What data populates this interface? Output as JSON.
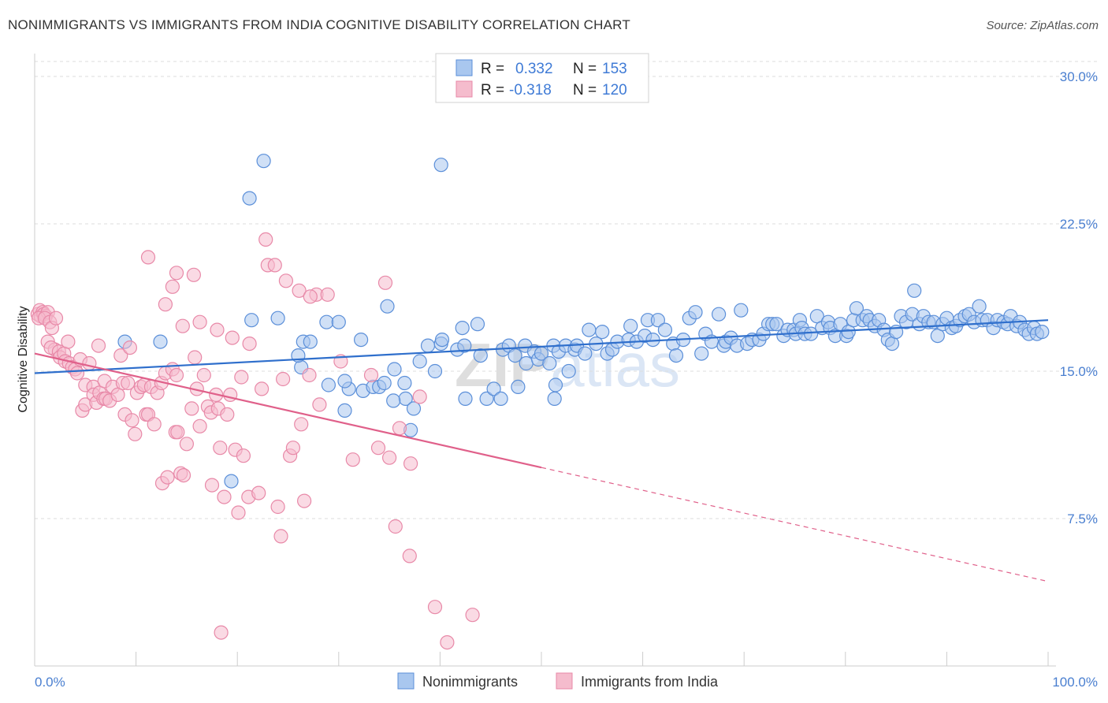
{
  "title": "NONIMMIGRANTS VS IMMIGRANTS FROM INDIA COGNITIVE DISABILITY CORRELATION CHART",
  "source": "Source: ZipAtlas.com",
  "watermark": "ZIPatlas",
  "colors": {
    "blue": "#5b8fd9",
    "blue_fill": "#a9c7ef",
    "blue_line": "#2f6fcc",
    "pink": "#e889a8",
    "pink_fill": "#f5bccd",
    "pink_line": "#e0608a",
    "axis_text": "#4a7fd0",
    "grid": "#d9d9d9"
  },
  "legend_box": [
    {
      "r_label": "R = ",
      "r_value": "0.332",
      "n_label": "N = ",
      "n_value": "153"
    },
    {
      "r_label": "R = ",
      "r_value": "-0.318",
      "n_label": "N = ",
      "n_value": "120"
    }
  ],
  "chart_data": {
    "type": "scatter",
    "title": "NONIMMIGRANTS VS IMMIGRANTS FROM INDIA COGNITIVE DISABILITY CORRELATION CHART",
    "xlabel": "",
    "ylabel": "Cognitive Disability",
    "xlim": [
      0,
      100
    ],
    "ylim": [
      0,
      30
    ],
    "x_tick_labels": [
      "0.0%",
      "100.0%"
    ],
    "y_ticks": [
      7.5,
      15.0,
      22.5,
      30.0
    ],
    "y_tick_labels": [
      "7.5%",
      "15.0%",
      "22.5%",
      "30.0%"
    ],
    "grid": "horizontal dashed",
    "legend_position": "bottom",
    "series": [
      {
        "name": "Nonimmigrants",
        "color": "#5b8fd9",
        "r": 0.332,
        "n": 153,
        "trend": {
          "x": [
            0,
            100
          ],
          "y": [
            14.9,
            17.6
          ],
          "dashed_from": null
        },
        "points": [
          [
            22.6,
            25.7
          ],
          [
            40.1,
            25.5
          ],
          [
            21.2,
            23.8
          ],
          [
            8.9,
            16.5
          ],
          [
            12.4,
            16.5
          ],
          [
            21.4,
            17.6
          ],
          [
            24.0,
            17.7
          ],
          [
            26.3,
            15.2
          ],
          [
            26.0,
            15.8
          ],
          [
            26.5,
            16.5
          ],
          [
            27.2,
            16.5
          ],
          [
            28.8,
            17.5
          ],
          [
            29.0,
            14.3
          ],
          [
            30.0,
            17.5
          ],
          [
            30.6,
            13.0
          ],
          [
            32.2,
            16.6
          ],
          [
            31.0,
            14.1
          ],
          [
            32.4,
            14.0
          ],
          [
            33.4,
            14.2
          ],
          [
            34.0,
            14.2
          ],
          [
            34.5,
            14.4
          ],
          [
            34.8,
            18.3
          ],
          [
            35.5,
            15.1
          ],
          [
            36.5,
            14.4
          ],
          [
            36.6,
            13.6
          ],
          [
            37.4,
            13.1
          ],
          [
            38.0,
            15.5
          ],
          [
            39.5,
            15.0
          ],
          [
            38.8,
            16.3
          ],
          [
            40.1,
            16.4
          ],
          [
            41.7,
            16.1
          ],
          [
            40.2,
            16.6
          ],
          [
            42.2,
            17.2
          ],
          [
            42.4,
            16.3
          ],
          [
            43.7,
            17.4
          ],
          [
            44.0,
            15.8
          ],
          [
            44.6,
            13.6
          ],
          [
            45.3,
            14.1
          ],
          [
            46.0,
            13.6
          ],
          [
            46.2,
            16.1
          ],
          [
            46.8,
            16.3
          ],
          [
            47.4,
            15.8
          ],
          [
            47.7,
            14.2
          ],
          [
            48.5,
            15.4
          ],
          [
            48.4,
            16.3
          ],
          [
            49.3,
            16.0
          ],
          [
            49.7,
            15.6
          ],
          [
            50.0,
            15.9
          ],
          [
            50.8,
            15.4
          ],
          [
            51.2,
            16.3
          ],
          [
            51.4,
            14.3
          ],
          [
            51.7,
            16.0
          ],
          [
            52.4,
            16.3
          ],
          [
            52.7,
            15.0
          ],
          [
            53.3,
            16.1
          ],
          [
            53.5,
            16.3
          ],
          [
            54.3,
            15.9
          ],
          [
            54.7,
            17.1
          ],
          [
            55.4,
            16.4
          ],
          [
            56.0,
            17.0
          ],
          [
            56.5,
            15.9
          ],
          [
            57.0,
            16.1
          ],
          [
            57.5,
            16.5
          ],
          [
            58.6,
            16.6
          ],
          [
            58.8,
            17.3
          ],
          [
            59.4,
            16.5
          ],
          [
            60.2,
            16.8
          ],
          [
            60.5,
            17.6
          ],
          [
            61.0,
            16.6
          ],
          [
            61.5,
            17.6
          ],
          [
            62.2,
            17.1
          ],
          [
            63.0,
            16.4
          ],
          [
            63.3,
            15.8
          ],
          [
            64.0,
            16.6
          ],
          [
            64.6,
            17.7
          ],
          [
            65.2,
            18.0
          ],
          [
            65.8,
            15.9
          ],
          [
            66.2,
            16.9
          ],
          [
            66.8,
            16.5
          ],
          [
            67.5,
            17.9
          ],
          [
            68.0,
            16.3
          ],
          [
            68.2,
            16.5
          ],
          [
            68.7,
            16.7
          ],
          [
            69.3,
            16.3
          ],
          [
            69.7,
            18.1
          ],
          [
            70.3,
            16.4
          ],
          [
            70.8,
            16.6
          ],
          [
            71.5,
            16.6
          ],
          [
            71.9,
            16.9
          ],
          [
            72.4,
            17.4
          ],
          [
            72.8,
            17.4
          ],
          [
            73.2,
            17.4
          ],
          [
            73.9,
            16.8
          ],
          [
            74.3,
            17.1
          ],
          [
            74.9,
            17.1
          ],
          [
            75.1,
            16.9
          ],
          [
            75.5,
            17.6
          ],
          [
            75.7,
            17.2
          ],
          [
            76.0,
            16.9
          ],
          [
            76.6,
            16.9
          ],
          [
            77.2,
            17.8
          ],
          [
            77.7,
            17.2
          ],
          [
            78.3,
            17.5
          ],
          [
            78.5,
            17.2
          ],
          [
            79.0,
            16.8
          ],
          [
            79.5,
            17.4
          ],
          [
            80.1,
            16.8
          ],
          [
            80.3,
            17.0
          ],
          [
            80.8,
            17.6
          ],
          [
            81.1,
            18.2
          ],
          [
            81.7,
            17.6
          ],
          [
            82.1,
            17.8
          ],
          [
            82.4,
            17.6
          ],
          [
            82.9,
            17.3
          ],
          [
            83.3,
            17.6
          ],
          [
            83.8,
            17.1
          ],
          [
            84.2,
            16.6
          ],
          [
            84.6,
            16.4
          ],
          [
            85.0,
            17.0
          ],
          [
            85.5,
            17.8
          ],
          [
            86.0,
            17.5
          ],
          [
            86.6,
            17.9
          ],
          [
            86.8,
            19.1
          ],
          [
            87.3,
            17.4
          ],
          [
            87.7,
            17.8
          ],
          [
            88.2,
            17.5
          ],
          [
            88.7,
            17.5
          ],
          [
            89.1,
            16.8
          ],
          [
            89.6,
            17.4
          ],
          [
            90.0,
            17.7
          ],
          [
            90.5,
            17.2
          ],
          [
            90.9,
            17.3
          ],
          [
            91.3,
            17.6
          ],
          [
            91.8,
            17.8
          ],
          [
            92.2,
            17.9
          ],
          [
            92.7,
            17.5
          ],
          [
            93.2,
            18.3
          ],
          [
            93.5,
            17.6
          ],
          [
            94.0,
            17.6
          ],
          [
            94.6,
            17.2
          ],
          [
            95.0,
            17.6
          ],
          [
            95.6,
            17.5
          ],
          [
            96.0,
            17.4
          ],
          [
            96.3,
            17.8
          ],
          [
            96.9,
            17.3
          ],
          [
            97.2,
            17.5
          ],
          [
            97.7,
            17.1
          ],
          [
            98.1,
            16.9
          ],
          [
            98.6,
            17.2
          ],
          [
            98.9,
            16.9
          ],
          [
            99.4,
            17.0
          ],
          [
            19.4,
            9.4
          ],
          [
            30.6,
            14.5
          ],
          [
            35.4,
            13.5
          ],
          [
            37.1,
            12.0
          ],
          [
            42.5,
            13.6
          ],
          [
            51.3,
            13.6
          ]
        ]
      },
      {
        "name": "Immigrants from India",
        "color": "#e889a8",
        "r": -0.318,
        "n": 120,
        "trend": {
          "x": [
            0,
            100
          ],
          "y": [
            15.9,
            4.3
          ],
          "dashed_from": 50
        },
        "points": [
          [
            0.3,
            17.9
          ],
          [
            0.5,
            18.1
          ],
          [
            0.6,
            17.8
          ],
          [
            0.8,
            18.0
          ],
          [
            0.9,
            17.9
          ],
          [
            1.1,
            17.8
          ],
          [
            1.3,
            18.0
          ],
          [
            0.4,
            17.7
          ],
          [
            1.0,
            17.7
          ],
          [
            1.5,
            17.5
          ],
          [
            1.7,
            17.2
          ],
          [
            2.1,
            17.7
          ],
          [
            1.3,
            16.5
          ],
          [
            2.0,
            16.1
          ],
          [
            1.6,
            16.2
          ],
          [
            2.4,
            16.0
          ],
          [
            2.5,
            15.7
          ],
          [
            2.9,
            15.9
          ],
          [
            3.0,
            15.5
          ],
          [
            3.4,
            15.4
          ],
          [
            3.3,
            16.5
          ],
          [
            3.7,
            15.2
          ],
          [
            4.0,
            15.1
          ],
          [
            4.2,
            14.9
          ],
          [
            4.5,
            15.6
          ],
          [
            4.7,
            13.0
          ],
          [
            5.0,
            13.3
          ],
          [
            5.0,
            14.3
          ],
          [
            5.4,
            15.4
          ],
          [
            5.8,
            14.2
          ],
          [
            5.8,
            13.8
          ],
          [
            6.1,
            13.4
          ],
          [
            6.3,
            16.3
          ],
          [
            6.4,
            13.9
          ],
          [
            6.8,
            13.6
          ],
          [
            7.0,
            13.6
          ],
          [
            6.9,
            14.5
          ],
          [
            7.4,
            13.5
          ],
          [
            7.7,
            14.2
          ],
          [
            8.2,
            13.8
          ],
          [
            8.5,
            15.8
          ],
          [
            8.7,
            14.4
          ],
          [
            8.9,
            12.8
          ],
          [
            9.2,
            14.4
          ],
          [
            9.4,
            16.2
          ],
          [
            9.6,
            12.5
          ],
          [
            9.9,
            11.8
          ],
          [
            10.1,
            13.9
          ],
          [
            10.5,
            14.2
          ],
          [
            10.8,
            14.3
          ],
          [
            11.0,
            12.8
          ],
          [
            11.2,
            12.8
          ],
          [
            11.5,
            14.2
          ],
          [
            11.8,
            12.3
          ],
          [
            12.1,
            13.9
          ],
          [
            12.5,
            14.4
          ],
          [
            12.6,
            9.3
          ],
          [
            12.9,
            14.9
          ],
          [
            13.1,
            9.6
          ],
          [
            13.6,
            15.1
          ],
          [
            13.9,
            11.9
          ],
          [
            14.0,
            14.8
          ],
          [
            14.1,
            11.9
          ],
          [
            14.4,
            9.8
          ],
          [
            14.7,
            9.7
          ],
          [
            15.0,
            11.3
          ],
          [
            15.5,
            13.1
          ],
          [
            15.8,
            15.7
          ],
          [
            16.0,
            14.1
          ],
          [
            16.3,
            12.2
          ],
          [
            16.7,
            14.8
          ],
          [
            17.1,
            13.2
          ],
          [
            17.4,
            12.9
          ],
          [
            17.5,
            9.2
          ],
          [
            17.9,
            13.8
          ],
          [
            18.1,
            13.1
          ],
          [
            18.3,
            11.1
          ],
          [
            18.7,
            8.6
          ],
          [
            19.0,
            12.8
          ],
          [
            19.3,
            13.8
          ],
          [
            19.8,
            11.0
          ],
          [
            20.1,
            7.8
          ],
          [
            20.4,
            14.7
          ],
          [
            20.6,
            10.7
          ],
          [
            21.1,
            8.6
          ],
          [
            22.1,
            8.8
          ],
          [
            22.4,
            14.1
          ],
          [
            23.0,
            20.4
          ],
          [
            24.0,
            8.1
          ],
          [
            24.3,
            6.6
          ],
          [
            24.5,
            14.6
          ],
          [
            25.2,
            10.7
          ],
          [
            25.5,
            11.1
          ],
          [
            26.3,
            12.3
          ],
          [
            26.6,
            8.4
          ],
          [
            27.1,
            14.8
          ],
          [
            27.8,
            18.9
          ],
          [
            28.1,
            13.3
          ],
          [
            28.9,
            18.9
          ],
          [
            30.2,
            15.5
          ],
          [
            31.4,
            10.5
          ],
          [
            33.2,
            14.8
          ],
          [
            33.9,
            11.1
          ],
          [
            34.6,
            19.5
          ],
          [
            35.0,
            10.6
          ],
          [
            36.0,
            12.1
          ],
          [
            37.0,
            5.6
          ],
          [
            37.1,
            10.3
          ],
          [
            38.0,
            13.7
          ],
          [
            39.5,
            3.0
          ],
          [
            40.7,
            1.2
          ],
          [
            43.2,
            2.6
          ],
          [
            11.2,
            20.8
          ],
          [
            14.0,
            20.0
          ],
          [
            15.7,
            19.9
          ],
          [
            13.6,
            19.3
          ],
          [
            12.9,
            18.4
          ],
          [
            14.6,
            17.3
          ],
          [
            16.3,
            17.5
          ],
          [
            18.0,
            17.1
          ],
          [
            19.5,
            16.7
          ],
          [
            21.2,
            16.4
          ],
          [
            23.7,
            20.4
          ],
          [
            24.8,
            19.6
          ],
          [
            26.1,
            19.1
          ],
          [
            27.2,
            18.8
          ],
          [
            22.8,
            21.7
          ],
          [
            18.4,
            1.7
          ],
          [
            35.6,
            7.1
          ]
        ]
      }
    ]
  }
}
